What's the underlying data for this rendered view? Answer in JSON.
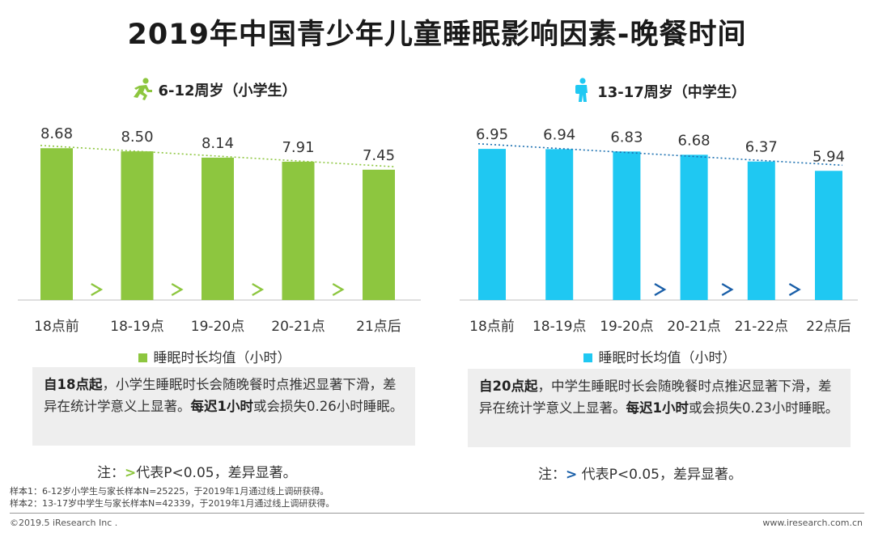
{
  "title": "2019年中国青少年儿童睡眠影响因素-晚餐时间",
  "colors": {
    "green": "#8dc63f",
    "blue": "#1fc8f2",
    "green_trend": "#8dc63f",
    "blue_trend": "#1a6fb0",
    "sig_green": "#8dc63f",
    "sig_blue": "#1a5fa8"
  },
  "icons": {
    "left": "running-child-icon",
    "right": "student-backpack-icon"
  },
  "chart_data": [
    {
      "type": "bar",
      "title": "6-12周岁（小学生）",
      "categories": [
        "18点前",
        "18-19点",
        "19-20点",
        "20-21点",
        "21点后"
      ],
      "series": [
        {
          "name": "睡眠时长均值（小时）",
          "values": [
            8.68,
            8.5,
            8.14,
            7.91,
            7.45
          ]
        }
      ],
      "value_labels": [
        "8.68",
        "8.50",
        "8.14",
        "7.91",
        "7.45"
      ],
      "significance_marks": [
        ">",
        ">",
        ">",
        ">"
      ],
      "trendline": "linear",
      "ylim": [
        0,
        9.2
      ]
    },
    {
      "type": "bar",
      "title": "13-17周岁（中学生）",
      "categories": [
        "18点前",
        "18-19点",
        "19-20点",
        "20-21点",
        "21-22点",
        "22点后"
      ],
      "series": [
        {
          "name": "睡眠时长均值（小时）",
          "values": [
            6.95,
            6.94,
            6.83,
            6.68,
            6.37,
            5.94
          ]
        }
      ],
      "value_labels": [
        "6.95",
        "6.94",
        "6.83",
        "6.68",
        "6.37",
        "5.94"
      ],
      "significance_marks": [
        "",
        "",
        ">",
        ">",
        ">"
      ],
      "trendline": "linear",
      "ylim": [
        0,
        7.4
      ]
    }
  ],
  "left": {
    "title": "6-12周岁（小学生）",
    "legend": "睡眠时长均值（小时）",
    "note": {
      "b1": "自18点起",
      "t1": "，小学生睡眠时长会随晚餐时点推迟显著下滑，差异在统计学意义上显著。",
      "b2": "每迟1小时",
      "t2": "或会损失0.26小时睡眠。"
    },
    "sig": {
      "prefix": "注：",
      "mark": ">",
      "suffix": "代表P<0.05，差异显著。"
    }
  },
  "right": {
    "title": "13-17周岁（中学生）",
    "legend": "睡眠时长均值（小时）",
    "note": {
      "b1": "自20点起",
      "t1": "，中学生睡眠时长会随晚餐时点推迟显著下滑，差异在统计学意义上显著。",
      "b2": "每迟1小时",
      "t2": "或会损失0.23小时睡眠。"
    },
    "sig": {
      "prefix": "注：",
      "mark": ">",
      "suffix": " 代表P<0.05，差异显著。"
    }
  },
  "footnotes": [
    "样本1：6-12岁小学生与家长样本N=25225，于2019年1月通过线上调研获得。",
    "样本2：13-17岁中学生与家长样本N=42339，于2019年1月通过线上调研获得。"
  ],
  "copyright": "©2019.5 iResearch Inc .",
  "website": "www.iresearch.com.cn"
}
